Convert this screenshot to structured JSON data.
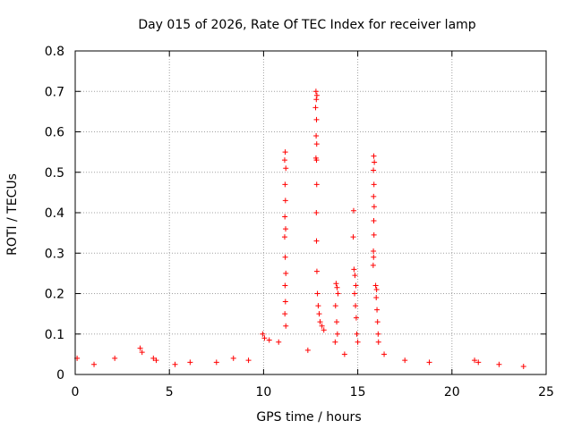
{
  "chart_data": {
    "type": "scatter",
    "title": "Day 015 of 2026, Rate Of TEC Index for receiver lamp",
    "xlabel": "GPS time / hours",
    "ylabel": "ROTI / TECUs",
    "xlim": [
      0,
      25
    ],
    "ylim": [
      0,
      0.8
    ],
    "x_ticks": [
      "0",
      "5",
      "10",
      "15",
      "20",
      "25"
    ],
    "y_ticks": [
      "0",
      "0.1",
      "0.2",
      "0.3",
      "0.4",
      "0.5",
      "0.6",
      "0.7",
      "0.8"
    ],
    "grid": true,
    "marker": "+",
    "series": [
      {
        "color": "#ff0000",
        "points": [
          [
            11.15,
            0.55
          ],
          [
            11.12,
            0.53
          ],
          [
            11.18,
            0.51
          ],
          [
            11.14,
            0.47
          ],
          [
            11.16,
            0.43
          ],
          [
            11.13,
            0.39
          ],
          [
            11.17,
            0.36
          ],
          [
            11.12,
            0.34
          ],
          [
            11.15,
            0.29
          ],
          [
            11.18,
            0.25
          ],
          [
            11.14,
            0.22
          ],
          [
            11.16,
            0.18
          ],
          [
            11.13,
            0.15
          ],
          [
            11.18,
            0.12
          ],
          [
            12.78,
            0.7
          ],
          [
            12.83,
            0.69
          ],
          [
            12.8,
            0.68
          ],
          [
            12.76,
            0.66
          ],
          [
            12.81,
            0.63
          ],
          [
            12.79,
            0.59
          ],
          [
            12.82,
            0.57
          ],
          [
            12.78,
            0.535
          ],
          [
            12.81,
            0.53
          ],
          [
            12.82,
            0.47
          ],
          [
            12.8,
            0.4
          ],
          [
            12.81,
            0.33
          ],
          [
            12.83,
            0.255
          ],
          [
            12.86,
            0.2
          ],
          [
            12.9,
            0.17
          ],
          [
            12.95,
            0.15
          ],
          [
            13.0,
            0.13
          ],
          [
            13.1,
            0.12
          ],
          [
            13.2,
            0.11
          ],
          [
            13.85,
            0.225
          ],
          [
            13.9,
            0.215
          ],
          [
            13.95,
            0.2
          ],
          [
            13.82,
            0.17
          ],
          [
            13.88,
            0.13
          ],
          [
            13.92,
            0.1
          ],
          [
            13.8,
            0.08
          ],
          [
            14.78,
            0.405
          ],
          [
            14.76,
            0.34
          ],
          [
            14.8,
            0.26
          ],
          [
            14.85,
            0.245
          ],
          [
            14.9,
            0.22
          ],
          [
            14.83,
            0.2
          ],
          [
            14.88,
            0.17
          ],
          [
            14.92,
            0.14
          ],
          [
            14.95,
            0.1
          ],
          [
            15.0,
            0.08
          ],
          [
            15.85,
            0.54
          ],
          [
            15.88,
            0.525
          ],
          [
            15.83,
            0.505
          ],
          [
            15.86,
            0.47
          ],
          [
            15.84,
            0.44
          ],
          [
            15.87,
            0.415
          ],
          [
            15.85,
            0.38
          ],
          [
            15.86,
            0.345
          ],
          [
            15.83,
            0.305
          ],
          [
            15.84,
            0.29
          ],
          [
            15.82,
            0.27
          ],
          [
            15.95,
            0.22
          ],
          [
            16.0,
            0.21
          ],
          [
            15.98,
            0.19
          ],
          [
            16.02,
            0.16
          ],
          [
            16.05,
            0.13
          ],
          [
            16.08,
            0.1
          ],
          [
            16.1,
            0.08
          ],
          [
            3.45,
            0.065
          ],
          [
            3.55,
            0.055
          ],
          [
            4.15,
            0.04
          ],
          [
            4.3,
            0.035
          ],
          [
            2.1,
            0.04
          ],
          [
            9.95,
            0.1
          ],
          [
            10.05,
            0.09
          ],
          [
            10.3,
            0.085
          ],
          [
            10.8,
            0.08
          ],
          [
            12.35,
            0.06
          ],
          [
            14.3,
            0.05
          ],
          [
            16.4,
            0.05
          ],
          [
            17.5,
            0.035
          ],
          [
            18.8,
            0.03
          ],
          [
            21.2,
            0.035
          ],
          [
            21.4,
            0.03
          ],
          [
            6.1,
            0.03
          ],
          [
            7.5,
            0.03
          ],
          [
            8.4,
            0.04
          ],
          [
            9.2,
            0.035
          ],
          [
            0.1,
            0.04
          ],
          [
            1.0,
            0.025
          ],
          [
            5.3,
            0.025
          ],
          [
            22.5,
            0.025
          ],
          [
            23.8,
            0.02
          ]
        ]
      }
    ]
  }
}
